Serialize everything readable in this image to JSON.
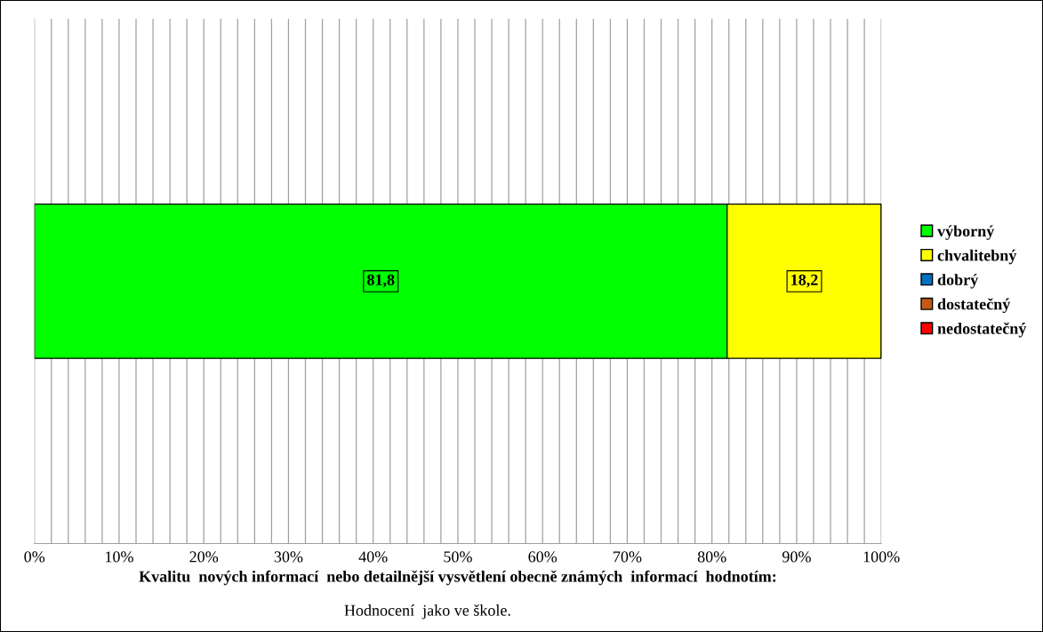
{
  "chart_data": {
    "type": "bar",
    "orientation": "horizontal",
    "stacked": true,
    "categories": [
      null
    ],
    "series": [
      {
        "name": "výborný",
        "color": "#00ff00",
        "values": [
          81.8
        ],
        "value_labels": [
          "81,8"
        ]
      },
      {
        "name": "chvalitebný",
        "color": "#ffff00",
        "values": [
          18.2
        ],
        "value_labels": [
          "18,2"
        ]
      },
      {
        "name": "dobrý",
        "color": "#0070c0",
        "values": [
          0
        ]
      },
      {
        "name": "dostatečný",
        "color": "#c55a11",
        "values": [
          0
        ]
      },
      {
        "name": "nedostatečný",
        "color": "#ff0000",
        "values": [
          0
        ]
      }
    ],
    "xlim": [
      0,
      100
    ],
    "xticks": [
      {
        "value": 0,
        "label": "0%"
      },
      {
        "value": 2,
        "label": null
      },
      {
        "value": 4,
        "label": null
      },
      {
        "value": 6,
        "label": null
      },
      {
        "value": 8,
        "label": null
      },
      {
        "value": 10,
        "label": "10%"
      },
      {
        "value": 12,
        "label": null
      },
      {
        "value": 14,
        "label": null
      },
      {
        "value": 16,
        "label": null
      },
      {
        "value": 18,
        "label": null
      },
      {
        "value": 20,
        "label": "20%"
      },
      {
        "value": 22,
        "label": null
      },
      {
        "value": 24,
        "label": null
      },
      {
        "value": 26,
        "label": null
      },
      {
        "value": 28,
        "label": null
      },
      {
        "value": 30,
        "label": "30%"
      },
      {
        "value": 32,
        "label": null
      },
      {
        "value": 34,
        "label": null
      },
      {
        "value": 36,
        "label": null
      },
      {
        "value": 38,
        "label": null
      },
      {
        "value": 40,
        "label": "40%"
      },
      {
        "value": 42,
        "label": null
      },
      {
        "value": 44,
        "label": null
      },
      {
        "value": 46,
        "label": null
      },
      {
        "value": 48,
        "label": null
      },
      {
        "value": 50,
        "label": "50%"
      },
      {
        "value": 52,
        "label": null
      },
      {
        "value": 54,
        "label": null
      },
      {
        "value": 56,
        "label": null
      },
      {
        "value": 58,
        "label": null
      },
      {
        "value": 60,
        "label": "60%"
      },
      {
        "value": 62,
        "label": null
      },
      {
        "value": 64,
        "label": null
      },
      {
        "value": 66,
        "label": null
      },
      {
        "value": 68,
        "label": null
      },
      {
        "value": 70,
        "label": "70%"
      },
      {
        "value": 72,
        "label": null
      },
      {
        "value": 74,
        "label": null
      },
      {
        "value": 76,
        "label": null
      },
      {
        "value": 78,
        "label": null
      },
      {
        "value": 80,
        "label": "80%"
      },
      {
        "value": 82,
        "label": null
      },
      {
        "value": 84,
        "label": null
      },
      {
        "value": 86,
        "label": null
      },
      {
        "value": 88,
        "label": null
      },
      {
        "value": 90,
        "label": "90%"
      },
      {
        "value": 92,
        "label": null
      },
      {
        "value": 94,
        "label": null
      },
      {
        "value": 96,
        "label": null
      },
      {
        "value": 98,
        "label": null
      },
      {
        "value": 100,
        "label": "100%"
      }
    ],
    "xlabel": "Kvalitu  nových informací  nebo detailnější vysvětlení obecně známých  informací  hodnotím:",
    "annotations": [
      "Hodnocení  jako ve škole."
    ],
    "grid": "x",
    "legend": "right"
  }
}
